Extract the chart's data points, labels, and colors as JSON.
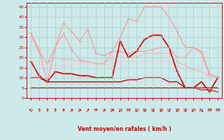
{
  "x": [
    0,
    1,
    2,
    3,
    4,
    5,
    6,
    7,
    8,
    9,
    10,
    11,
    12,
    13,
    14,
    15,
    16,
    17,
    18,
    19,
    20,
    21,
    22,
    23
  ],
  "lines": [
    {
      "y": [
        32,
        23,
        17,
        25,
        32,
        24,
        19,
        18,
        17,
        17,
        23,
        23,
        22,
        23,
        23,
        24,
        25,
        25,
        20,
        20,
        25,
        22,
        11,
        10
      ],
      "color": "#ff9999",
      "lw": 0.8,
      "ms": 2.5
    },
    {
      "y": [
        31,
        22,
        17,
        20,
        19,
        19,
        18,
        18,
        17,
        17,
        20,
        20,
        20,
        20,
        22,
        22,
        22,
        22,
        18,
        16,
        14,
        13,
        11,
        10
      ],
      "color": "#ffb0b0",
      "lw": 0.8,
      "ms": 2.0
    },
    {
      "y": [
        18,
        17,
        15,
        16,
        16,
        16,
        17,
        17,
        16,
        16,
        17,
        18,
        18,
        18,
        18,
        19,
        18,
        18,
        16,
        14,
        13,
        13,
        10,
        10
      ],
      "color": "#ffcccc",
      "lw": 0.7,
      "ms": 1.5
    },
    {
      "y": [
        32,
        24,
        8,
        25,
        37,
        33,
        28,
        34,
        22,
        21,
        23,
        30,
        39,
        38,
        45,
        45,
        45,
        40,
        33,
        25,
        25,
        23,
        12,
        10
      ],
      "color": "#ff9999",
      "lw": 0.9,
      "ms": 2.5
    },
    {
      "y": [
        18,
        11,
        8,
        13,
        12,
        12,
        11,
        11,
        10,
        10,
        10,
        28,
        20,
        23,
        29,
        31,
        31,
        25,
        13,
        5,
        5,
        8,
        3,
        10
      ],
      "color": "#dd0000",
      "lw": 1.3,
      "ms": 3.0
    },
    {
      "y": [
        10,
        10,
        8,
        8,
        8,
        8,
        8,
        8,
        8,
        8,
        8,
        8,
        9,
        9,
        10,
        10,
        10,
        8,
        8,
        5,
        5,
        5,
        5,
        5
      ],
      "color": "#cc0000",
      "lw": 1.0,
      "ms": 2.0
    },
    {
      "y": [
        5,
        5,
        5,
        5,
        5,
        5,
        5,
        5,
        5,
        5,
        5,
        5,
        5,
        5,
        5,
        5,
        5,
        5,
        5,
        5,
        5,
        4,
        4,
        3
      ],
      "color": "#cc0000",
      "lw": 0.8,
      "ms": 1.5
    }
  ],
  "arrows": [
    "↖",
    "↑",
    "↑",
    "↑",
    "↑",
    "↗",
    "↗",
    "↗",
    "→",
    "↗",
    "↗",
    "↙",
    "→",
    "↓",
    "↓",
    "↓",
    "↓",
    "↓",
    "↓",
    "↓",
    "↙",
    "↘",
    "→",
    "→"
  ],
  "xlabel": "Vent moyen/en rafales ( km/h )",
  "xlim": [
    -0.5,
    23.5
  ],
  "ylim": [
    0,
    47
  ],
  "yticks": [
    0,
    5,
    10,
    15,
    20,
    25,
    30,
    35,
    40,
    45
  ],
  "xticks": [
    0,
    1,
    2,
    3,
    4,
    5,
    6,
    7,
    8,
    9,
    10,
    11,
    12,
    13,
    14,
    15,
    16,
    17,
    18,
    19,
    20,
    21,
    22,
    23
  ],
  "bg_color": "#cdeaea",
  "grid_color": "#aacccc",
  "axis_color": "#cc0000",
  "label_color": "#cc0000"
}
